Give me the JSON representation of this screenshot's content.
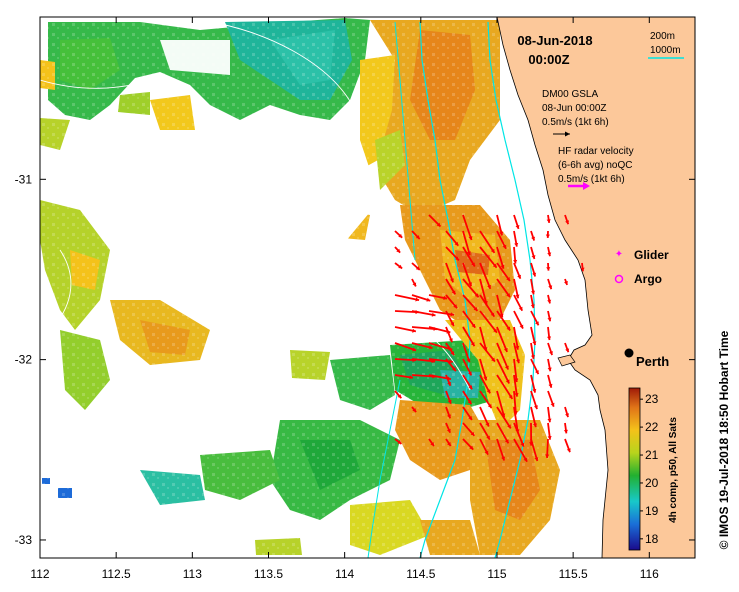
{
  "map": {
    "date": "08-Jun-2018",
    "time": "00:00Z",
    "isobaths": {
      "shallow": "200m",
      "deep": "1000m"
    },
    "gsla": {
      "title": "DM00 GSLA",
      "date": "08-Jun 00:00Z",
      "scale": "0.5m/s (1kt 6h)"
    },
    "hf_radar": {
      "title": "HF radar velocity",
      "avg": "(6-6h avg) noQC",
      "scale": "0.5m/s (1kt 6h)"
    },
    "legend": {
      "glider": "Glider",
      "argo": "Argo"
    },
    "city": "Perth",
    "credit": "© IMOS 19-Jul-2018 18:50 Hobart Time",
    "colors": {
      "land": "#fcc89a",
      "isobath": "#00e5e5",
      "vectors": "#ff0000",
      "glider": "#ff00ff",
      "argo": "#ff00ff"
    }
  },
  "x_axis": {
    "ticks": [
      "112",
      "112.5",
      "113",
      "113.5",
      "114",
      "114.5",
      "115",
      "115.5",
      "116"
    ],
    "values": [
      112,
      112.5,
      113,
      113.5,
      114,
      114.5,
      115,
      115.5,
      116
    ],
    "range": [
      112,
      116.3
    ]
  },
  "y_axis": {
    "ticks": [
      "-31",
      "-32",
      "-33"
    ],
    "values": [
      -31,
      -32,
      -33
    ],
    "range": [
      -33.1,
      -30.1
    ]
  },
  "colorbar": {
    "label": "4h comp, p50, All Sats",
    "ticks": [
      "18",
      "19",
      "20",
      "21",
      "22",
      "23"
    ],
    "values": [
      18,
      19,
      20,
      21,
      22,
      23
    ],
    "range": [
      17.6,
      23.4
    ]
  }
}
